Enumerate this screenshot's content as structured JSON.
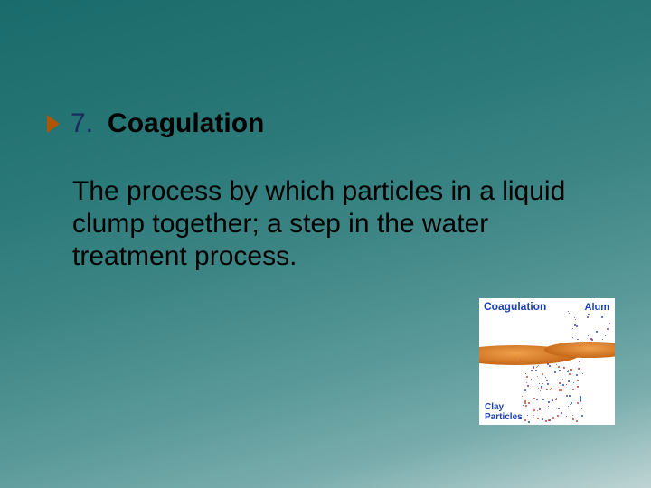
{
  "slide": {
    "number": "7.",
    "title": "Coagulation",
    "body": "The process by which particles in a liquid clump together; a step in the water treatment process.",
    "bullet_color": "#b35400",
    "number_color": "#1a2a5c",
    "title_color": "#000000",
    "body_color": "#000000",
    "bullet_fontsize": 30,
    "body_fontsize": 30
  },
  "diagram": {
    "label_coag": "Coagulation",
    "label_alum": "Alum",
    "label_clay_line1": "Clay",
    "label_clay_line2": "Particles",
    "coag_color": "#1a3fb3",
    "alum_color": "#1a3fb3",
    "clay_color": "#1a3fb3",
    "disk_color": "#c76a1a",
    "bg_color": "#ffffff",
    "particle_colors": [
      "#c24a3f",
      "#2a4ab3",
      "#6b3fa3",
      "#c24a3f",
      "#2a4ab3",
      "#c24a3f"
    ],
    "particle_count_upper": 25,
    "particle_count_lower": 120
  },
  "background_gradient": [
    "#1a6b6b",
    "#2a7878",
    "#3d8585",
    "#5a9999",
    "#7aadad",
    "#bfd4d4"
  ]
}
